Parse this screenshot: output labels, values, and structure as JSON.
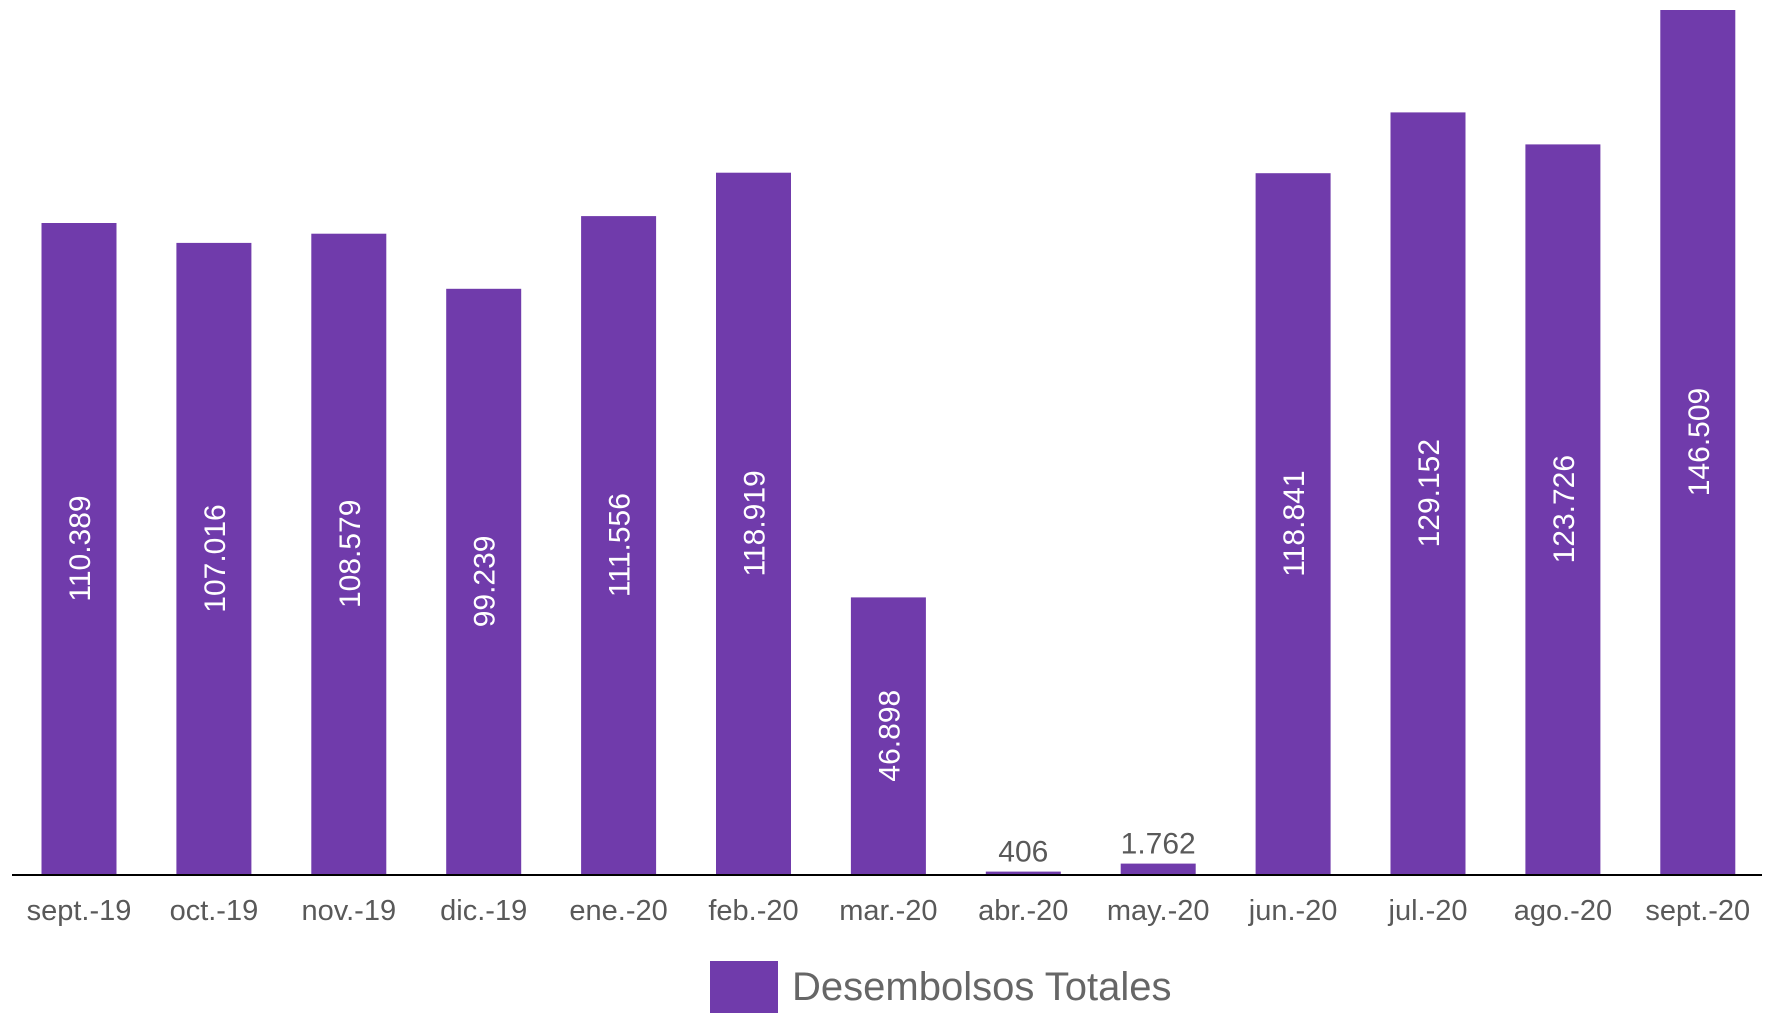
{
  "chart_data": {
    "type": "bar",
    "categories": [
      "sept.-19",
      "oct.-19",
      "nov.-19",
      "dic.-19",
      "ene.-20",
      "feb.-20",
      "mar.-20",
      "abr.-20",
      "may.-20",
      "jun.-20",
      "jul.-20",
      "ago.-20",
      "sept.-20"
    ],
    "series": [
      {
        "name": "Desembolsos Totales",
        "values": [
          110389,
          107016,
          108579,
          99239,
          111556,
          118919,
          46898,
          406,
          1762,
          118841,
          129152,
          123726,
          146509
        ],
        "labels": [
          "110.389",
          "107.016",
          "108.579",
          "99.239",
          "111.556",
          "118.919",
          "46.898",
          "406",
          "1.762",
          "118.841",
          "129.152",
          "123.726",
          "146.509"
        ]
      }
    ],
    "ylim": [
      0,
      146509
    ],
    "grid": false,
    "legend_position": "bottom-center",
    "colors": {
      "bar": "#703BAB",
      "label_inside": "#FFFFFF",
      "label_outside": "#595959",
      "axis": "#000000",
      "tick_label": "#595959"
    }
  },
  "legend": {
    "label": "Desembolsos Totales"
  }
}
